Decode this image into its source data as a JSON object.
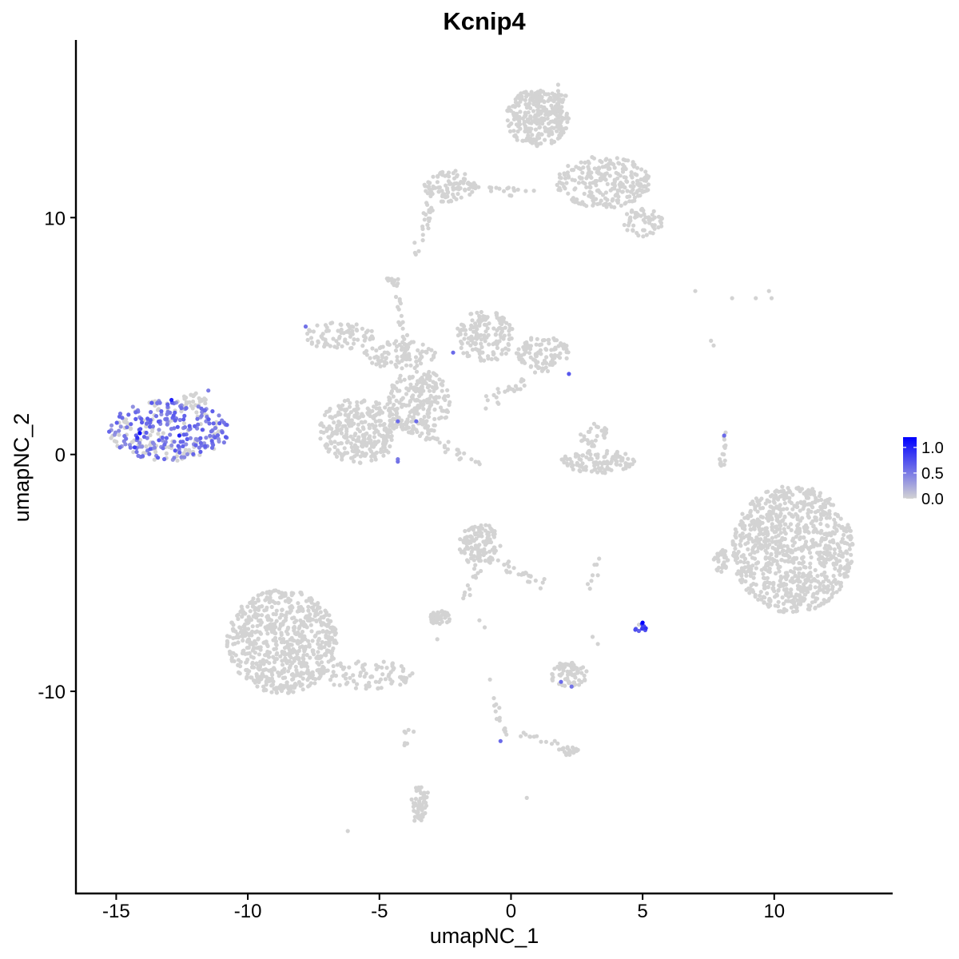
{
  "chart_data": {
    "type": "scatter",
    "title": "Kcnip4",
    "xlabel": "umapNC_1",
    "ylabel": "umapNC_2",
    "xlim": [
      -16.5,
      14.5
    ],
    "ylim": [
      -18.5,
      17.5
    ],
    "x_ticks": [
      -15,
      -10,
      -5,
      0,
      5,
      10
    ],
    "x_tick_labels": [
      "-15",
      "-10",
      "-5",
      "0",
      "5",
      "10"
    ],
    "y_ticks": [
      -10,
      0,
      10
    ],
    "y_tick_labels": [
      "-10",
      "0",
      "10"
    ],
    "grid": false,
    "legend": {
      "placement": "right",
      "type": "colorbar",
      "min": 0.0,
      "max": 1.2,
      "tick_values": [
        1.0,
        0.5,
        0.0
      ],
      "tick_labels": [
        "1.0",
        "0.5",
        "0.0"
      ],
      "color_low": "#d3d3d3",
      "color_high": "#0000ff"
    },
    "point_color_low": "#d3d3d3",
    "point_color_high": "#0000ff",
    "clusters": [
      {
        "cx": -13.0,
        "cy": 1.0,
        "rx": 2.3,
        "ry": 1.3,
        "n": 320,
        "expr": 0.35
      },
      {
        "cx": -12.0,
        "cy": 2.3,
        "rx": 0.5,
        "ry": 0.3,
        "n": 20,
        "expr": 0.0
      },
      {
        "cx": -8.7,
        "cy": -7.9,
        "rx": 2.1,
        "ry": 2.2,
        "n": 700,
        "expr": 0.0
      },
      {
        "cx": -5.5,
        "cy": -9.3,
        "rx": 1.8,
        "ry": 0.6,
        "n": 90,
        "expr": 0.0
      },
      {
        "cx": -5.8,
        "cy": 1.0,
        "rx": 1.5,
        "ry": 1.4,
        "n": 300,
        "expr": 0.0
      },
      {
        "cx": -6.5,
        "cy": 5.0,
        "rx": 1.3,
        "ry": 0.6,
        "n": 80,
        "expr": 0.0
      },
      {
        "cx": -4.2,
        "cy": 4.2,
        "rx": 1.4,
        "ry": 0.6,
        "n": 90,
        "expr": 0.0
      },
      {
        "cx": -3.5,
        "cy": 2.2,
        "rx": 1.2,
        "ry": 1.4,
        "n": 220,
        "expr": 0.0
      },
      {
        "cx": -1.0,
        "cy": 5.0,
        "rx": 1.1,
        "ry": 1.1,
        "n": 150,
        "expr": 0.0
      },
      {
        "cx": 1.2,
        "cy": 4.3,
        "rx": 1.0,
        "ry": 0.7,
        "n": 100,
        "expr": 0.0
      },
      {
        "cx": -4.5,
        "cy": 7.3,
        "rx": 0.25,
        "ry": 0.25,
        "n": 15,
        "expr": 0.0
      },
      {
        "cx": 3.3,
        "cy": -0.3,
        "rx": 1.4,
        "ry": 0.5,
        "n": 110,
        "expr": 0.0
      },
      {
        "cx": 3.2,
        "cy": 0.8,
        "rx": 0.6,
        "ry": 0.5,
        "n": 30,
        "expr": 0.0
      },
      {
        "cx": -2.3,
        "cy": 11.3,
        "rx": 1.0,
        "ry": 0.7,
        "n": 80,
        "expr": 0.0
      },
      {
        "cx": 1.0,
        "cy": 14.2,
        "rx": 1.2,
        "ry": 1.2,
        "n": 300,
        "expr": 0.0
      },
      {
        "cx": 3.5,
        "cy": 11.5,
        "rx": 1.8,
        "ry": 1.1,
        "n": 260,
        "expr": 0.0
      },
      {
        "cx": 5.0,
        "cy": 9.8,
        "rx": 0.8,
        "ry": 0.6,
        "n": 60,
        "expr": 0.0
      },
      {
        "cx": -1.2,
        "cy": -3.8,
        "rx": 0.8,
        "ry": 0.9,
        "n": 120,
        "expr": 0.0
      },
      {
        "cx": -2.7,
        "cy": -6.9,
        "rx": 0.4,
        "ry": 0.3,
        "n": 45,
        "expr": 0.0
      },
      {
        "cx": 2.2,
        "cy": -9.3,
        "rx": 0.7,
        "ry": 0.6,
        "n": 70,
        "expr": 0.0
      },
      {
        "cx": 10.7,
        "cy": -4.0,
        "rx": 2.3,
        "ry": 2.7,
        "n": 900,
        "expr": 0.0
      },
      {
        "cx": 8.0,
        "cy": -4.5,
        "rx": 0.3,
        "ry": 0.5,
        "n": 35,
        "expr": 0.0
      },
      {
        "cx": -3.5,
        "cy": -14.8,
        "rx": 0.3,
        "ry": 0.8,
        "n": 40,
        "expr": 0.0
      },
      {
        "cx": 2.2,
        "cy": -12.5,
        "rx": 0.4,
        "ry": 0.2,
        "n": 20,
        "expr": 0.0
      },
      {
        "cx": 4.9,
        "cy": -7.3,
        "rx": 0.25,
        "ry": 0.2,
        "n": 12,
        "expr": 0.6
      }
    ],
    "trails": [
      {
        "from": [
          -4.5,
          1.5
        ],
        "to": [
          -1.2,
          -0.4
        ],
        "n": 40,
        "spread": 0.12
      },
      {
        "from": [
          -1.3,
          1.8
        ],
        "to": [
          1.2,
          3.7
        ],
        "n": 30,
        "spread": 0.15
      },
      {
        "from": [
          -4.3,
          6.7
        ],
        "to": [
          -4.0,
          4.0
        ],
        "n": 25,
        "spread": 0.1
      },
      {
        "from": [
          -2.2,
          11.4
        ],
        "to": [
          0.8,
          11.0
        ],
        "n": 30,
        "spread": 0.12
      },
      {
        "from": [
          -3.2,
          9.8
        ],
        "to": [
          -3.0,
          11.5
        ],
        "n": 25,
        "spread": 0.1
      },
      {
        "from": [
          -3.6,
          8.5
        ],
        "to": [
          -3.2,
          9.8
        ],
        "n": 8,
        "spread": 0.1
      },
      {
        "from": [
          0.2,
          15.2
        ],
        "to": [
          2.0,
          15.2
        ],
        "n": 20,
        "spread": 0.15
      },
      {
        "from": [
          -0.4,
          -4.5
        ],
        "to": [
          1.2,
          -5.5
        ],
        "n": 25,
        "spread": 0.12
      },
      {
        "from": [
          -1.2,
          -4.8
        ],
        "to": [
          -1.8,
          -6.0
        ],
        "n": 12,
        "spread": 0.1
      },
      {
        "from": [
          -0.7,
          -10.3
        ],
        "to": [
          -0.2,
          -11.8
        ],
        "n": 14,
        "spread": 0.08
      },
      {
        "from": [
          0.2,
          -11.7
        ],
        "to": [
          2.4,
          -12.5
        ],
        "n": 14,
        "spread": 0.08
      },
      {
        "from": [
          -4.0,
          -11.3
        ],
        "to": [
          -4.0,
          -12.3
        ],
        "n": 6,
        "spread": 0.05
      },
      {
        "from": [
          -3.3,
          -14.3
        ],
        "to": [
          -3.6,
          -15.8
        ],
        "n": 15,
        "spread": 0.08
      },
      {
        "from": [
          8.0,
          -0.5
        ],
        "to": [
          8.2,
          1.0
        ],
        "n": 15,
        "spread": 0.05
      },
      {
        "from": [
          2.8,
          -6.1
        ],
        "to": [
          3.4,
          -4.0
        ],
        "n": 6,
        "spread": 0.05
      }
    ],
    "singles": [
      {
        "x": -6.2,
        "y": -15.9,
        "expr": 0.0
      },
      {
        "x": 0.6,
        "y": -14.5,
        "expr": 0.0
      },
      {
        "x": 7.0,
        "y": 6.9,
        "expr": 0.0
      },
      {
        "x": 8.4,
        "y": 6.6,
        "expr": 0.0
      },
      {
        "x": 9.3,
        "y": 6.6,
        "expr": 0.0
      },
      {
        "x": 9.8,
        "y": 6.9,
        "expr": 0.0
      },
      {
        "x": 9.9,
        "y": 6.6,
        "expr": 0.0
      },
      {
        "x": 7.6,
        "y": 4.8,
        "expr": 0.0
      },
      {
        "x": 7.7,
        "y": 4.6,
        "expr": 0.0
      },
      {
        "x": 3.1,
        "y": -5.1,
        "expr": 0.0
      },
      {
        "x": 3.3,
        "y": -5.1,
        "expr": 0.0
      },
      {
        "x": -1.2,
        "y": -7.0,
        "expr": 0.0
      },
      {
        "x": -1.0,
        "y": -7.3,
        "expr": 0.0
      },
      {
        "x": 3.1,
        "y": -7.7,
        "expr": 0.0
      },
      {
        "x": 3.3,
        "y": -8.0,
        "expr": 0.0
      },
      {
        "x": -2.8,
        "y": -7.8,
        "expr": 0.0
      },
      {
        "x": -0.8,
        "y": -9.5,
        "expr": 0.0
      },
      {
        "x": -3.7,
        "y": -11.7,
        "expr": 0.0
      },
      {
        "x": -7.8,
        "y": 5.4,
        "expr": 0.55
      },
      {
        "x": -2.2,
        "y": 4.3,
        "expr": 0.6
      },
      {
        "x": 2.2,
        "y": 3.4,
        "expr": 0.7
      },
      {
        "x": -4.3,
        "y": 1.4,
        "expr": 0.6
      },
      {
        "x": -3.6,
        "y": 1.4,
        "expr": 0.6
      },
      {
        "x": -4.3,
        "y": -0.3,
        "expr": 0.55
      },
      {
        "x": -4.3,
        "y": -0.2,
        "expr": 0.5
      },
      {
        "x": 8.1,
        "y": 0.8,
        "expr": 0.6
      },
      {
        "x": 5.0,
        "y": -7.1,
        "expr": 1.25
      },
      {
        "x": 5.05,
        "y": -7.25,
        "expr": 0.8
      },
      {
        "x": 1.9,
        "y": -9.6,
        "expr": 0.6
      },
      {
        "x": 2.3,
        "y": -9.8,
        "expr": 0.55
      },
      {
        "x": -0.4,
        "y": -12.1,
        "expr": 0.6
      },
      {
        "x": -14.1,
        "y": 0.9,
        "expr": 1.3
      },
      {
        "x": -12.9,
        "y": 2.3,
        "expr": 1.0
      },
      {
        "x": -12.6,
        "y": 0.8,
        "expr": 1.0
      },
      {
        "x": -14.2,
        "y": 0.7,
        "expr": 0.9
      },
      {
        "x": -14.3,
        "y": 0.3,
        "expr": 0.85
      },
      {
        "x": -11.5,
        "y": 2.7,
        "expr": 0.5
      }
    ]
  }
}
